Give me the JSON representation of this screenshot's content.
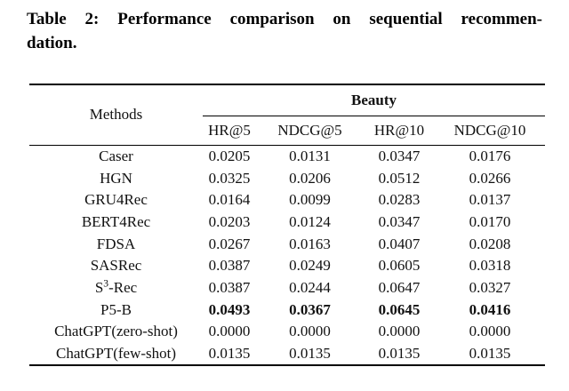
{
  "caption": {
    "line1": "Table 2: Performance comparison on sequential recommen-",
    "line2": "dation."
  },
  "table": {
    "methods_label": "Methods",
    "group_label": "Beauty",
    "columns": [
      "HR@5",
      "NDCG@5",
      "HR@10",
      "NDCG@10"
    ],
    "rows": [
      {
        "method": "Caser",
        "values": [
          "0.0205",
          "0.0131",
          "0.0347",
          "0.0176"
        ],
        "bold": false
      },
      {
        "method": "HGN",
        "values": [
          "0.0325",
          "0.0206",
          "0.0512",
          "0.0266"
        ],
        "bold": false
      },
      {
        "method": "GRU4Rec",
        "values": [
          "0.0164",
          "0.0099",
          "0.0283",
          "0.0137"
        ],
        "bold": false
      },
      {
        "method": "BERT4Rec",
        "values": [
          "0.0203",
          "0.0124",
          "0.0347",
          "0.0170"
        ],
        "bold": false
      },
      {
        "method": "FDSA",
        "values": [
          "0.0267",
          "0.0163",
          "0.0407",
          "0.0208"
        ],
        "bold": false
      },
      {
        "method": "SASRec",
        "values": [
          "0.0387",
          "0.0249",
          "0.0605",
          "0.0318"
        ],
        "bold": false
      },
      {
        "method": "S3-Rec",
        "method_parts": {
          "base": "S",
          "sup": "3",
          "rest": "-Rec"
        },
        "values": [
          "0.0387",
          "0.0244",
          "0.0647",
          "0.0327"
        ],
        "bold": false
      },
      {
        "method": "P5-B",
        "values": [
          "0.0493",
          "0.0367",
          "0.0645",
          "0.0416"
        ],
        "bold": true
      },
      {
        "method": "ChatGPT(zero-shot)",
        "values": [
          "0.0000",
          "0.0000",
          "0.0000",
          "0.0000"
        ],
        "bold": false
      },
      {
        "method": "ChatGPT(few-shot)",
        "values": [
          "0.0135",
          "0.0135",
          "0.0135",
          "0.0135"
        ],
        "bold": false
      }
    ],
    "colors": {
      "text": "#111111",
      "rule": "#000000",
      "background": "#ffffff"
    }
  }
}
